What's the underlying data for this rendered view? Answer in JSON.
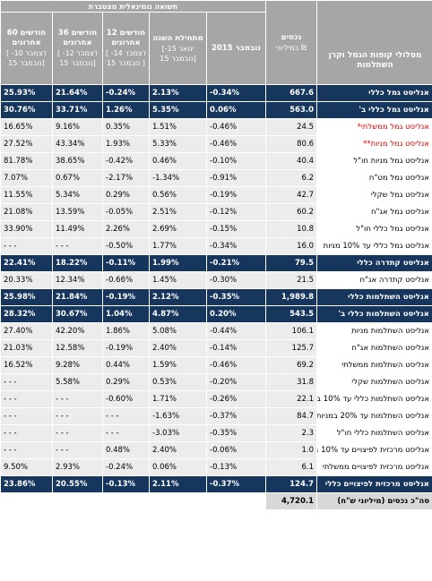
{
  "header": {
    "group_title": "תשואה נומינאלית מצטברת",
    "columns": [
      {
        "title": "60 חודשים אחרונים",
        "sub": "[ דצמבר 10- נובמבר 15]"
      },
      {
        "title": "36 חודשים אחרונים",
        "sub": "[ דצמבר 12- נובמבר 15]"
      },
      {
        "title": "12 חודשים אחרונים",
        "sub": "[ דצמבר 14- נובמבר 15 ]"
      },
      {
        "title": "מתחילת השנה",
        "sub": "[ינואר 15- נובמבר 15]"
      },
      {
        "title": "נובמבר 2015",
        "sub": ""
      },
      {
        "title": "נכסים",
        "sub": "במיליוני ₪"
      },
      {
        "title": "מסלולי קופות הגמל וקרן השתלמות",
        "sub": ""
      }
    ]
  },
  "rows": [
    {
      "cells": [
        "25.93%",
        "21.64%",
        "-0.24%",
        "2.13%",
        "-0.34%",
        "667.6",
        "אנליסט גמל כללי"
      ],
      "style": "blue"
    },
    {
      "cells": [
        "30.76%",
        "33.71%",
        "1.26%",
        "5.35%",
        "0.06%",
        "563.0",
        "אנליסט גמל כללי ב'"
      ],
      "style": "blue"
    },
    {
      "cells": [
        "16.65%",
        "9.16%",
        "0.35%",
        "1.51%",
        "-0.46%",
        "24.5",
        "אנליסט גמל ממשלתי*"
      ],
      "style": "white",
      "red": true
    },
    {
      "cells": [
        "27.52%",
        "43.34%",
        "1.93%",
        "5.33%",
        "-0.46%",
        "80.6",
        "אנליסט גמל מניות**"
      ],
      "style": "white",
      "red": true
    },
    {
      "cells": [
        "81.78%",
        "38.65%",
        "-0.42%",
        "0.46%",
        "-0.10%",
        "40.4",
        "אנליסט גמל מניות חו\"ל"
      ],
      "style": "white"
    },
    {
      "cells": [
        "7.07%",
        "0.67%",
        "-2.17%",
        "-1.34%",
        "-0.91%",
        "6.2",
        "אנליסט גמל מט\"ח"
      ],
      "style": "white"
    },
    {
      "cells": [
        "11.55%",
        "5.34%",
        "0.29%",
        "0.56%",
        "-0.19%",
        "42.7",
        "אנליסט גמל שקלי"
      ],
      "style": "white"
    },
    {
      "cells": [
        "21.08%",
        "13.59%",
        "-0.05%",
        "2.51%",
        "-0.12%",
        "60.2",
        "אנליסט גמל אג\"ח"
      ],
      "style": "white"
    },
    {
      "cells": [
        "33.90%",
        "11.49%",
        "2.26%",
        "2.69%",
        "-0.15%",
        "10.8",
        "אנליסט גמל כללי חו\"ל"
      ],
      "style": "white"
    },
    {
      "cells": [
        "- - -",
        "- - -",
        "-0.50%",
        "1.77%",
        "-0.34%",
        "16.0",
        "אנליסט גמל כללי עד 10% מניות"
      ],
      "style": "white"
    },
    {
      "cells": [
        "22.41%",
        "18.22%",
        "-0.11%",
        "1.99%",
        "-0.21%",
        "79.5",
        "אנליסט קתדרה כללי"
      ],
      "style": "blue"
    },
    {
      "cells": [
        "20.33%",
        "12.34%",
        "-0.66%",
        "1.45%",
        "-0.30%",
        "21.5",
        "אנליסט קתדרה אג\"ח"
      ],
      "style": "white"
    },
    {
      "cells": [
        "25.98%",
        "21.84%",
        "-0.19%",
        "2.12%",
        "-0.35%",
        "1,989.8",
        "אנליסט השתלמות כללי"
      ],
      "style": "blue"
    },
    {
      "cells": [
        "28.32%",
        "30.67%",
        "1.04%",
        "4.87%",
        "0.20%",
        "543.5",
        "אנליסט השתלמות כללי ב'"
      ],
      "style": "blue"
    },
    {
      "cells": [
        "27.40%",
        "42.20%",
        "1.86%",
        "5.08%",
        "-0.44%",
        "106.1",
        "אנליסט השתלמות מניות"
      ],
      "style": "white"
    },
    {
      "cells": [
        "21.03%",
        "12.58%",
        "-0.19%",
        "2.40%",
        "-0.14%",
        "125.7",
        "אנליסט השתלמות אג\"ח"
      ],
      "style": "white"
    },
    {
      "cells": [
        "16.52%",
        "9.28%",
        "0.44%",
        "1.59%",
        "-0.46%",
        "69.2",
        "אנליסט השתלמות ממשלתי"
      ],
      "style": "white"
    },
    {
      "cells": [
        "- - -",
        "5.58%",
        "0.29%",
        "0.53%",
        "-0.20%",
        "31.8",
        "אנליסט השתלמות שקלי"
      ],
      "style": "white"
    },
    {
      "cells": [
        "- - -",
        "- - -",
        "-0.60%",
        "1.71%",
        "-0.26%",
        "22.1",
        "אנליסט השתלמות כללי עד 10% במניות"
      ],
      "style": "white"
    },
    {
      "cells": [
        "- - -",
        "- - -",
        "- - -",
        "-1.63%",
        "-0.37%",
        "84.7",
        "אנליסט השתלמות עד 20% במניות"
      ],
      "style": "white"
    },
    {
      "cells": [
        "- - -",
        "- - -",
        "- - -",
        "-3.03%",
        "-0.35%",
        "2.3",
        "אנליסט השתלמות כללי חו\"ל"
      ],
      "style": "white"
    },
    {
      "cells": [
        "- - -",
        "- - -",
        "0.48%",
        "2.40%",
        "-0.06%",
        "1.0",
        "אנליסט מרכזית לפיצויים עד 10% במניות"
      ],
      "style": "white"
    },
    {
      "cells": [
        "9.50%",
        "2.93%",
        "-0.24%",
        "0.06%",
        "-0.13%",
        "6.1",
        "אנליסט מרכזית לפיצויים ממשלתי"
      ],
      "style": "white"
    },
    {
      "cells": [
        "23.86%",
        "20.55%",
        "-0.13%",
        "2.11%",
        "-0.37%",
        "124.7",
        "אנליסט מרכזית לפיצויים כללי"
      ],
      "style": "blue"
    }
  ],
  "total": {
    "value": "4,720.1",
    "label": "סה\"כ נכסים (מיליוני ש\"ח)"
  }
}
